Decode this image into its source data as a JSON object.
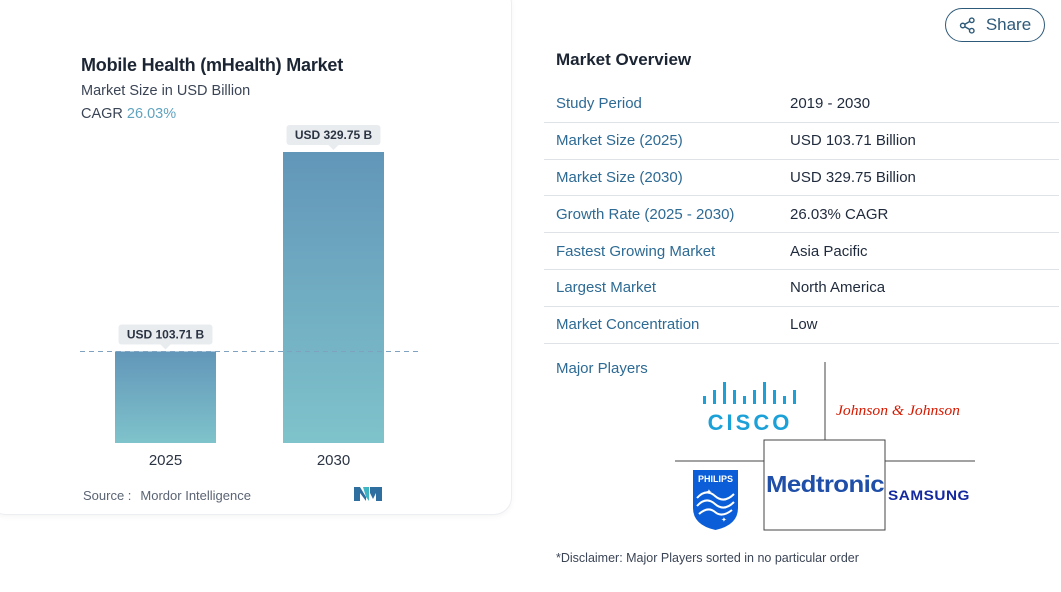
{
  "chart_data": {
    "type": "bar",
    "title": "Mobile Health (mHealth) Market",
    "subtitle": "Market Size in USD Billion",
    "cagr_label": "CAGR",
    "cagr_value": "26.03%",
    "categories": [
      "2025",
      "2030"
    ],
    "values": [
      103.71,
      329.75
    ],
    "data_labels": [
      "USD 103.71 B",
      "USD 329.75 B"
    ],
    "xlabel": "",
    "ylabel": "",
    "ylim": [
      0,
      329.75
    ],
    "grid": false,
    "reference_line": 103.71,
    "bar_color_top": "#6296b9",
    "bar_color_bottom": "#7fc3cb"
  },
  "source": {
    "label": "Source :",
    "value": "Mordor Intelligence"
  },
  "share": {
    "label": "Share",
    "icon": "share-icon"
  },
  "overview": {
    "title": "Market Overview",
    "rows": [
      {
        "key": "Study Period",
        "value": "2019 - 2030"
      },
      {
        "key": "Market Size (2025)",
        "value": "USD 103.71 Billion"
      },
      {
        "key": "Market Size (2030)",
        "value": "USD 329.75 Billion"
      },
      {
        "key": "Growth Rate (2025 - 2030)",
        "value": "26.03% CAGR"
      },
      {
        "key": "Fastest Growing Market",
        "value": "Asia Pacific"
      },
      {
        "key": "Largest Market",
        "value": "North America"
      },
      {
        "key": "Market Concentration",
        "value": "Low"
      }
    ]
  },
  "major_players": {
    "title": "Major Players",
    "logos": [
      "CISCO",
      "Johnson & Johnson",
      "PHILIPS",
      "Medtronic",
      "SAMSUNG"
    ]
  },
  "disclaimer": "*Disclaimer: Major Players sorted in no particular order",
  "colors": {
    "accent": "#2d6a94",
    "cagr": "#5fa3bf",
    "cisco": "#1ba0d7",
    "jnj": "#d51900",
    "philips": "#0b5ed7",
    "medtronic": "#1f4fa8",
    "samsung": "#1428a0"
  }
}
